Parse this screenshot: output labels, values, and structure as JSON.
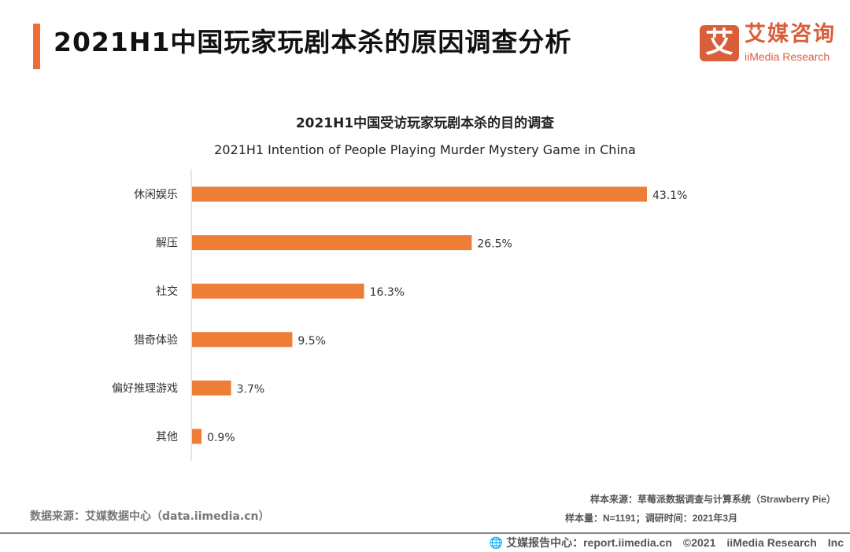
{
  "header": {
    "title": "2021H1中国玩家玩剧本杀的原因调查分析"
  },
  "logo": {
    "mark": "艾",
    "cn": "艾媒咨询",
    "en": "iiMedia Research"
  },
  "chart_data": {
    "type": "bar",
    "orientation": "horizontal",
    "title": "2021H1中国受访玩家玩剧本杀的目的调查",
    "subtitle": "2021H1 Intention of People Playing Murder Mystery Game in China",
    "categories": [
      "休闲娱乐",
      "解压",
      "社交",
      "猎奇体验",
      "偏好推理游戏",
      "其他"
    ],
    "values": [
      43.1,
      26.5,
      16.3,
      9.5,
      3.7,
      0.9
    ],
    "labels": [
      "43.1%",
      "26.5%",
      "16.3%",
      "9.5%",
      "3.7%",
      "0.9%"
    ],
    "unit": "%",
    "color": "#ee7d36",
    "grid": false
  },
  "notes": {
    "sample_source": "样本来源：草莓派数据调查与计算系统（Strawberry Pie）",
    "sample_size": "样本量：N=1191；调研时间：2021年3月",
    "data_source": "数据来源：艾媒数据中心（data.iimedia.cn）"
  },
  "footer": {
    "icon": "globe-icon",
    "text": "艾媒报告中心：report.iimedia.cn　©2021　iiMedia Research　Inc"
  }
}
